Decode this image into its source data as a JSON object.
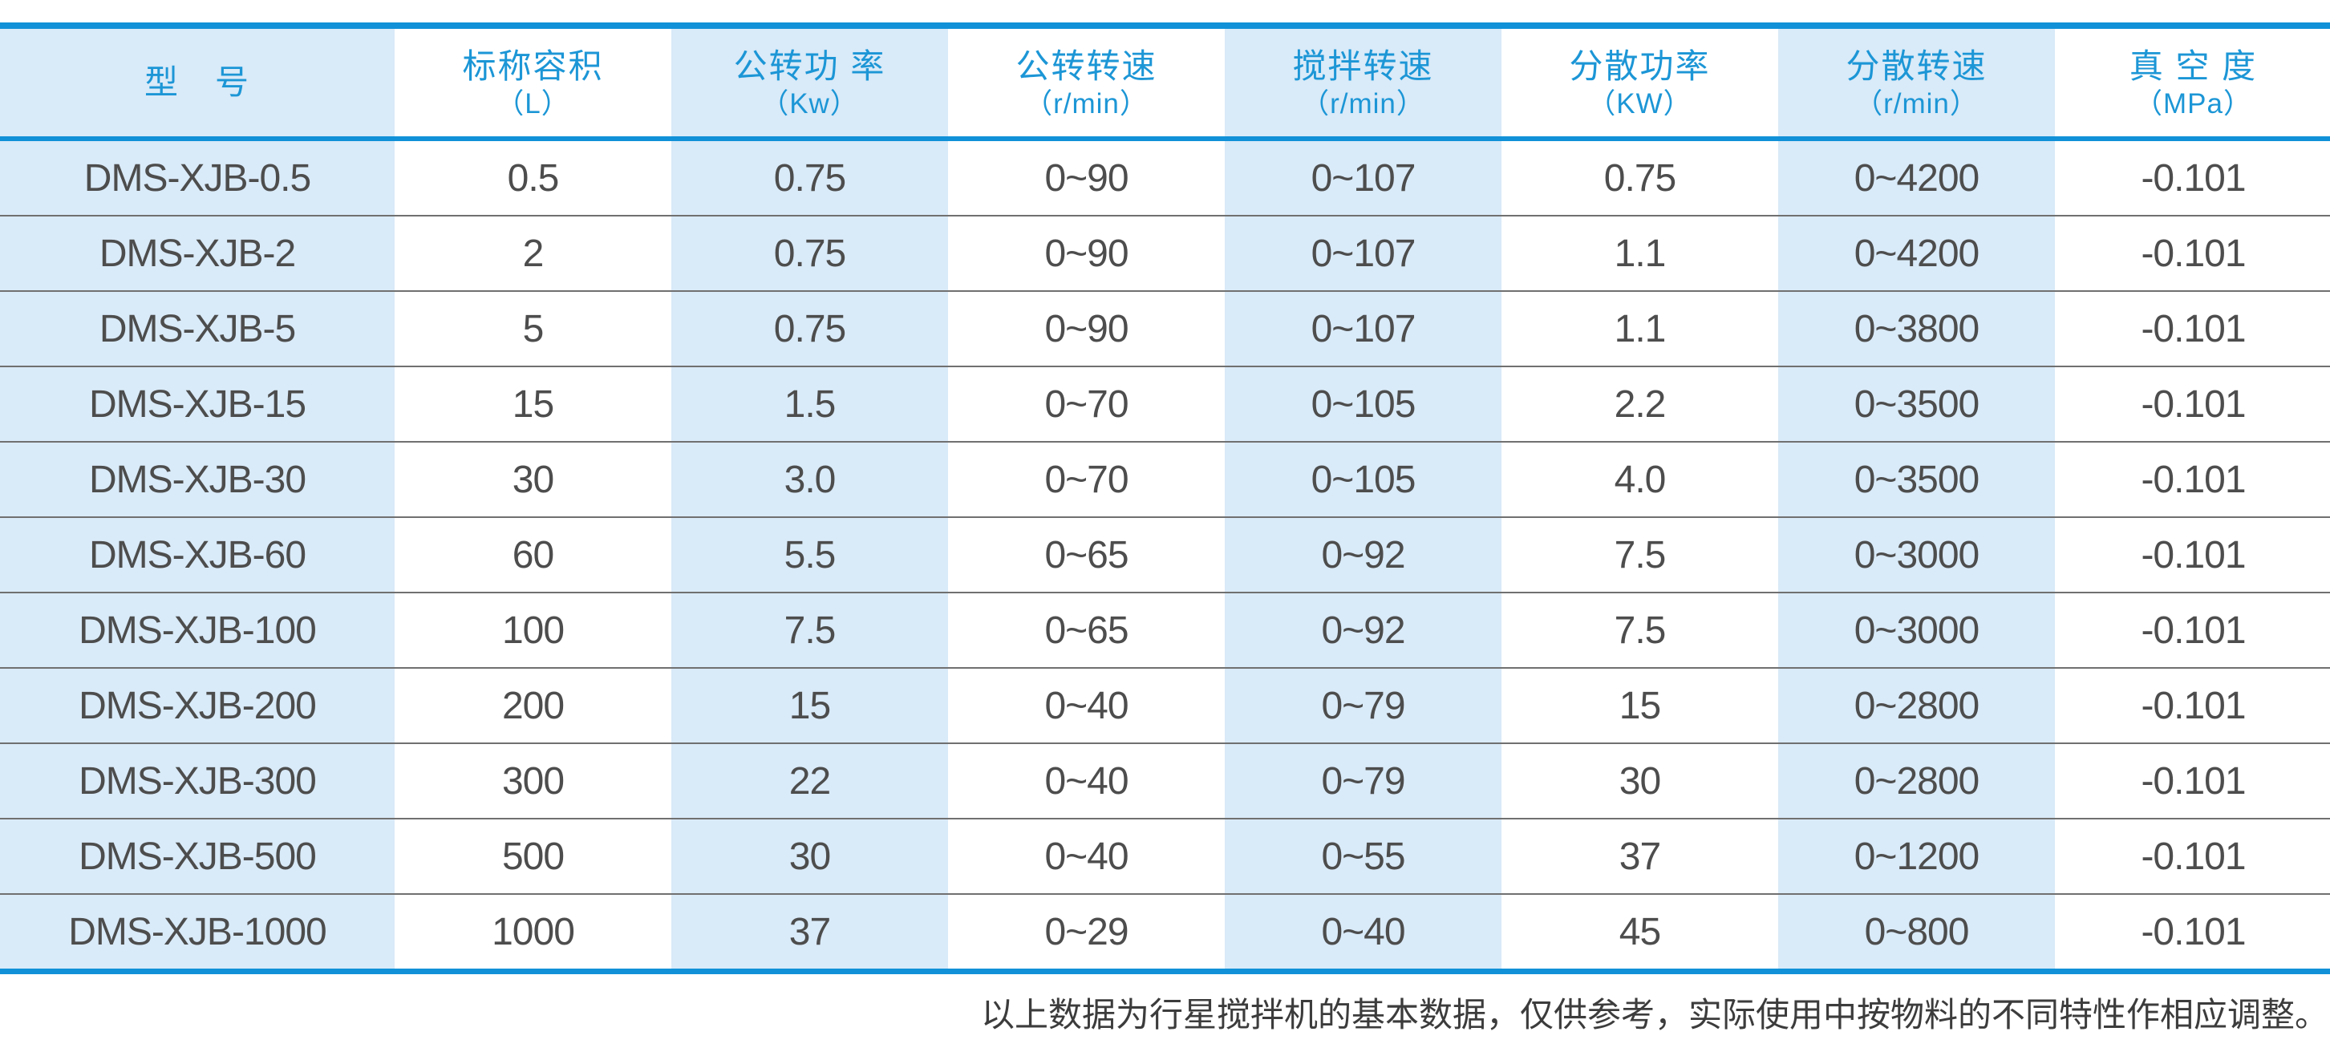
{
  "table": {
    "columns": [
      {
        "label": "型　号",
        "unit": ""
      },
      {
        "label": "标称容积",
        "unit": "（L）"
      },
      {
        "label": "公转功 率",
        "unit": "（Kw）"
      },
      {
        "label": "公转转速",
        "unit": "（r/min）"
      },
      {
        "label": "搅拌转速",
        "unit": "（r/min）"
      },
      {
        "label": "分散功率",
        "unit": "（KW）"
      },
      {
        "label": "分散转速",
        "unit": "（r/min）"
      },
      {
        "label": "真 空 度",
        "unit": "（MPa）"
      }
    ],
    "rows": [
      [
        "DMS-XJB-0.5",
        "0.5",
        "0.75",
        "0~90",
        "0~107",
        "0.75",
        "0~4200",
        "-0.101"
      ],
      [
        "DMS-XJB-2",
        "2",
        "0.75",
        "0~90",
        "0~107",
        "1.1",
        "0~4200",
        "-0.101"
      ],
      [
        "DMS-XJB-5",
        "5",
        "0.75",
        "0~90",
        "0~107",
        "1.1",
        "0~3800",
        "-0.101"
      ],
      [
        "DMS-XJB-15",
        "15",
        "1.5",
        "0~70",
        "0~105",
        "2.2",
        "0~3500",
        "-0.101"
      ],
      [
        "DMS-XJB-30",
        "30",
        "3.0",
        "0~70",
        "0~105",
        "4.0",
        "0~3500",
        "-0.101"
      ],
      [
        "DMS-XJB-60",
        "60",
        "5.5",
        "0~65",
        "0~92",
        "7.5",
        "0~3000",
        "-0.101"
      ],
      [
        "DMS-XJB-100",
        "100",
        "7.5",
        "0~65",
        "0~92",
        "7.5",
        "0~3000",
        "-0.101"
      ],
      [
        "DMS-XJB-200",
        "200",
        "15",
        "0~40",
        "0~79",
        "15",
        "0~2800",
        "-0.101"
      ],
      [
        "DMS-XJB-300",
        "300",
        "22",
        "0~40",
        "0~79",
        "30",
        "0~2800",
        "-0.101"
      ],
      [
        "DMS-XJB-500",
        "500",
        "30",
        "0~40",
        "0~55",
        "37",
        "0~1200",
        "-0.101"
      ],
      [
        "DMS-XJB-1000",
        "1000",
        "37",
        "0~29",
        "0~40",
        "45",
        "0~800",
        "-0.101"
      ]
    ]
  },
  "footer": {
    "note": "以上数据为行星搅拌机的基本数据，仅供参考，实际使用中按物料的不同特性作相应调整。"
  },
  "colors": {
    "accent_line": "#1191d8",
    "header_text": "#1c96d6",
    "stripe_bg": "#d9eaf8",
    "data_text": "#4d4d4d",
    "separator_line": "#707070",
    "note_text": "#3c3c3c"
  }
}
